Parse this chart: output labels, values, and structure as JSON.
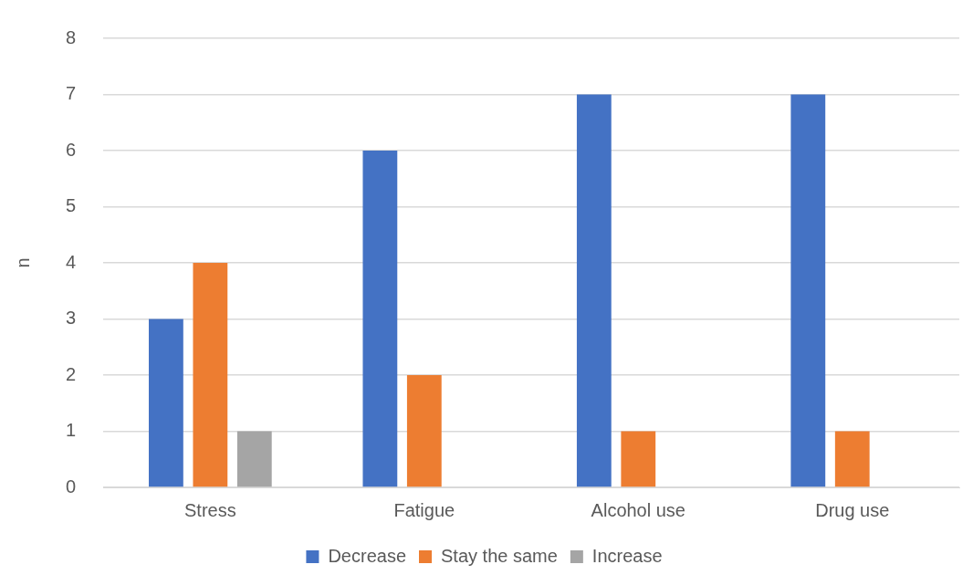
{
  "chart_data": {
    "type": "bar",
    "ylabel": "n",
    "categories": [
      "Stress",
      "Fatigue",
      "Alcohol use",
      "Drug use"
    ],
    "series": [
      {
        "name": "Decrease",
        "color": "#4472c4",
        "values": [
          3,
          6,
          7,
          7
        ]
      },
      {
        "name": "Stay the same",
        "color": "#ed7d31",
        "values": [
          4,
          2,
          1,
          1
        ]
      },
      {
        "name": "Increase",
        "color": "#a5a5a5",
        "values": [
          1,
          0,
          0,
          0
        ]
      }
    ],
    "ylim": [
      0,
      8
    ],
    "yticks": [
      0,
      1,
      2,
      3,
      4,
      5,
      6,
      7,
      8
    ],
    "grid": "y",
    "legend": "bottom"
  }
}
